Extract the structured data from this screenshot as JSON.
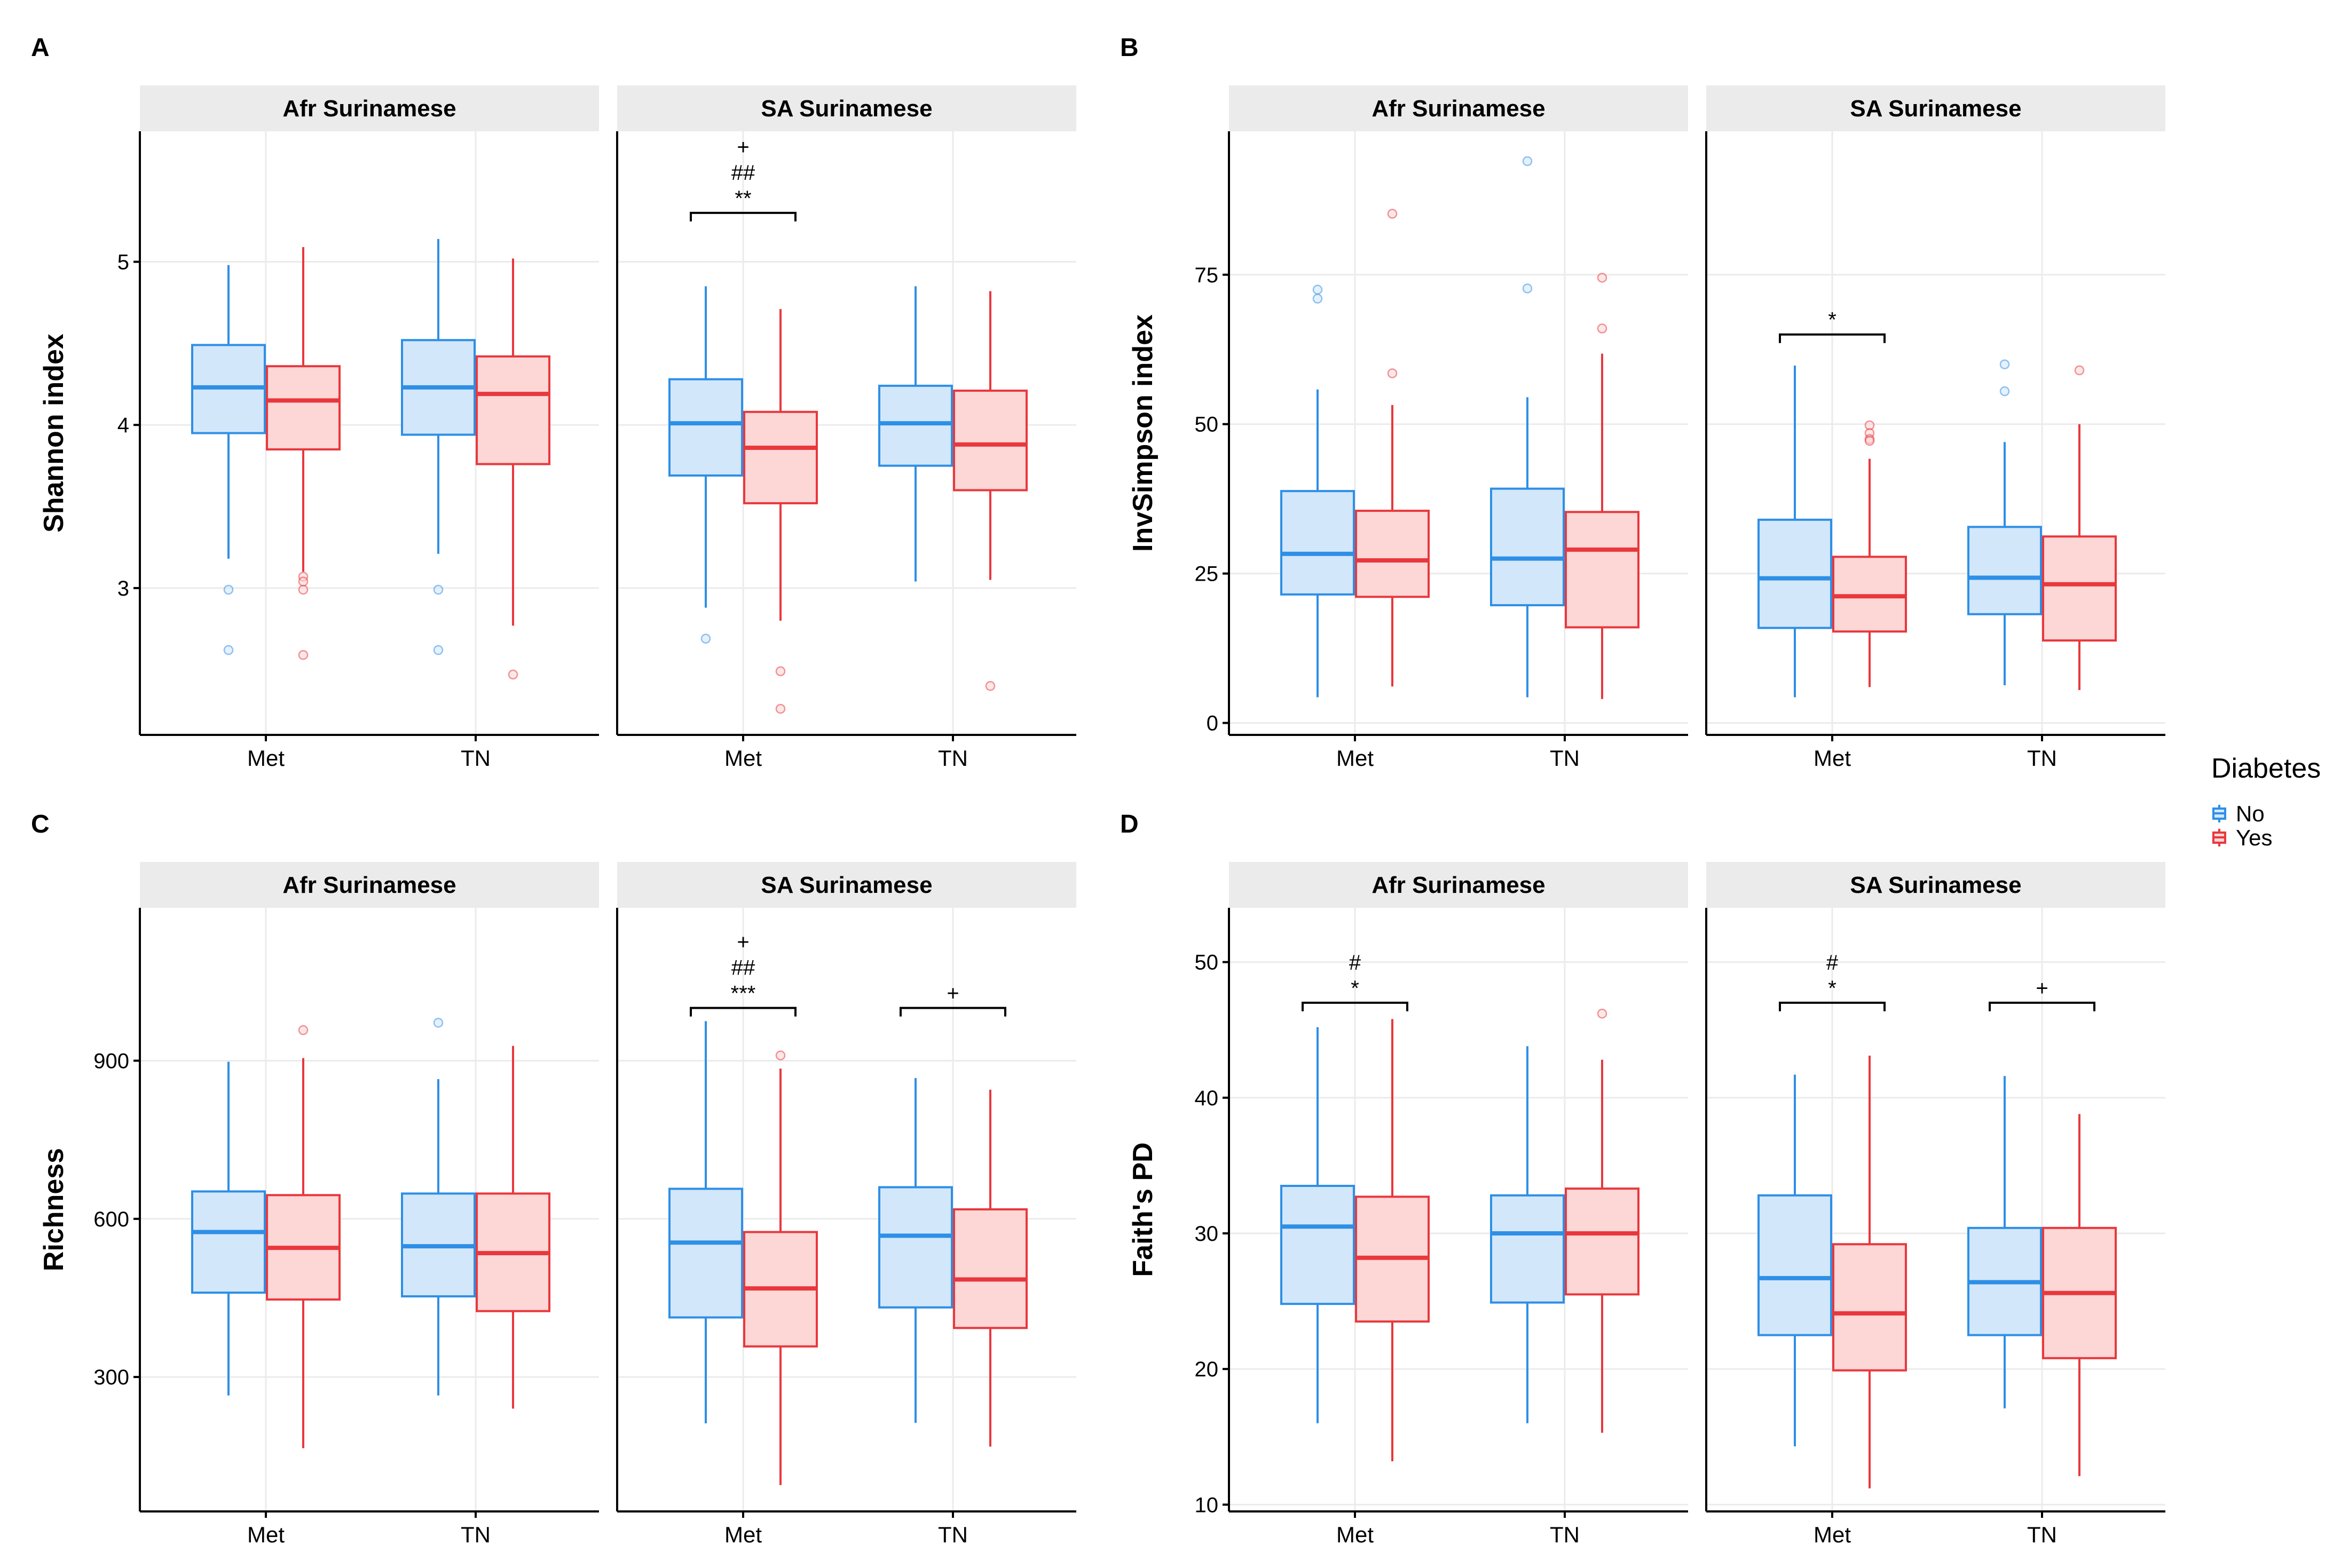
{
  "legend": {
    "title": "Diabetes",
    "items": [
      "No",
      "Yes"
    ]
  },
  "colors": {
    "no_line": "#2E8FE6",
    "no_fill": "#D3E7FA",
    "yes_line": "#E8383D",
    "yes_fill": "#FDD6D6",
    "strip_bg": "#EBEBEB",
    "grid": "#EBEBEB",
    "axis": "#000000",
    "text": "#000000"
  },
  "chart_data": [
    {
      "panel": "A",
      "type": "boxplot",
      "ylabel": "Shannon index",
      "ylim": [
        2.1,
        5.8
      ],
      "yticks": [
        3,
        4,
        5
      ],
      "groups": [
        "Met",
        "TN"
      ],
      "series": [
        "No",
        "Yes"
      ],
      "facets": [
        {
          "title": "Afr Surinamese",
          "groups": [
            {
              "label": "Met",
              "boxes": [
                {
                  "series": "No",
                  "q1": 3.95,
                  "median": 4.23,
                  "q3": 4.49,
                  "whisker_low": 3.18,
                  "whisker_high": 4.98,
                  "outliers": [
                    2.99,
                    2.62
                  ]
                },
                {
                  "series": "Yes",
                  "q1": 3.85,
                  "median": 4.15,
                  "q3": 4.36,
                  "whisker_low": 3.1,
                  "whisker_high": 5.09,
                  "outliers": [
                    3.07,
                    3.04,
                    2.99,
                    2.59
                  ]
                }
              ]
            },
            {
              "label": "TN",
              "boxes": [
                {
                  "series": "No",
                  "q1": 3.94,
                  "median": 4.23,
                  "q3": 4.52,
                  "whisker_low": 3.21,
                  "whisker_high": 5.14,
                  "outliers": [
                    2.99,
                    2.62
                  ]
                },
                {
                  "series": "Yes",
                  "q1": 3.76,
                  "median": 4.19,
                  "q3": 4.42,
                  "whisker_low": 2.77,
                  "whisker_high": 5.02,
                  "outliers": [
                    2.47
                  ]
                }
              ]
            }
          ],
          "annotations": []
        },
        {
          "title": "SA Surinamese",
          "groups": [
            {
              "label": "Met",
              "boxes": [
                {
                  "series": "No",
                  "q1": 3.69,
                  "median": 4.01,
                  "q3": 4.28,
                  "whisker_low": 2.88,
                  "whisker_high": 4.85,
                  "outliers": [
                    2.69
                  ]
                },
                {
                  "series": "Yes",
                  "q1": 3.52,
                  "median": 3.86,
                  "q3": 4.08,
                  "whisker_low": 2.8,
                  "whisker_high": 4.71,
                  "outliers": [
                    2.49,
                    2.26
                  ]
                }
              ]
            },
            {
              "label": "TN",
              "boxes": [
                {
                  "series": "No",
                  "q1": 3.75,
                  "median": 4.01,
                  "q3": 4.24,
                  "whisker_low": 3.04,
                  "whisker_high": 4.85,
                  "outliers": []
                },
                {
                  "series": "Yes",
                  "q1": 3.6,
                  "median": 3.88,
                  "q3": 4.21,
                  "whisker_low": 3.05,
                  "whisker_high": 4.82,
                  "outliers": [
                    2.4
                  ]
                }
              ]
            }
          ],
          "annotations": [
            {
              "group": "Met",
              "bracket": true,
              "y": 5.3,
              "labels": [
                "+",
                "##",
                "**"
              ]
            }
          ]
        }
      ]
    },
    {
      "panel": "B",
      "type": "boxplot",
      "ylabel": "InvSimpson index",
      "ylim": [
        -2,
        99
      ],
      "yticks": [
        0,
        25,
        50,
        75
      ],
      "groups": [
        "Met",
        "TN"
      ],
      "series": [
        "No",
        "Yes"
      ],
      "facets": [
        {
          "title": "Afr Surinamese",
          "groups": [
            {
              "label": "Met",
              "boxes": [
                {
                  "series": "No",
                  "q1": 21.5,
                  "median": 28.3,
                  "q3": 38.8,
                  "whisker_low": 4.3,
                  "whisker_high": 55.8,
                  "outliers": [
                    72.5,
                    71.0
                  ]
                },
                {
                  "series": "Yes",
                  "q1": 21.1,
                  "median": 27.2,
                  "q3": 35.5,
                  "whisker_low": 6.1,
                  "whisker_high": 53.2,
                  "outliers": [
                    85.2,
                    58.5
                  ]
                }
              ]
            },
            {
              "label": "TN",
              "boxes": [
                {
                  "series": "No",
                  "q1": 19.7,
                  "median": 27.5,
                  "q3": 39.2,
                  "whisker_low": 4.3,
                  "whisker_high": 54.5,
                  "outliers": [
                    94.0,
                    72.7
                  ]
                },
                {
                  "series": "Yes",
                  "q1": 16.0,
                  "median": 29.0,
                  "q3": 35.3,
                  "whisker_low": 4.0,
                  "whisker_high": 61.8,
                  "outliers": [
                    74.5,
                    66.0
                  ]
                }
              ]
            }
          ],
          "annotations": []
        },
        {
          "title": "SA Surinamese",
          "groups": [
            {
              "label": "Met",
              "boxes": [
                {
                  "series": "No",
                  "q1": 15.9,
                  "median": 24.2,
                  "q3": 34.0,
                  "whisker_low": 4.3,
                  "whisker_high": 59.8,
                  "outliers": []
                },
                {
                  "series": "Yes",
                  "q1": 15.3,
                  "median": 21.2,
                  "q3": 27.8,
                  "whisker_low": 6.0,
                  "whisker_high": 44.2,
                  "outliers": [
                    49.8,
                    48.5,
                    47.5,
                    47.2
                  ]
                }
              ]
            },
            {
              "label": "TN",
              "boxes": [
                {
                  "series": "No",
                  "q1": 18.2,
                  "median": 24.3,
                  "q3": 32.8,
                  "whisker_low": 6.3,
                  "whisker_high": 47.0,
                  "outliers": [
                    60.0,
                    55.5
                  ]
                },
                {
                  "series": "Yes",
                  "q1": 13.8,
                  "median": 23.2,
                  "q3": 31.2,
                  "whisker_low": 5.5,
                  "whisker_high": 50.0,
                  "outliers": [
                    59.0
                  ]
                }
              ]
            }
          ],
          "annotations": [
            {
              "group": "Met",
              "bracket": true,
              "y": 65.0,
              "labels": [
                "*"
              ]
            }
          ]
        }
      ]
    },
    {
      "panel": "C",
      "type": "boxplot",
      "ylabel": "Richness",
      "ylim": [
        45,
        1190
      ],
      "yticks": [
        300,
        600,
        900
      ],
      "groups": [
        "Met",
        "TN"
      ],
      "series": [
        "No",
        "Yes"
      ],
      "facets": [
        {
          "title": "Afr Surinamese",
          "groups": [
            {
              "label": "Met",
              "boxes": [
                {
                  "series": "No",
                  "q1": 460,
                  "median": 575,
                  "q3": 652,
                  "whisker_low": 265,
                  "whisker_high": 898,
                  "outliers": []
                },
                {
                  "series": "Yes",
                  "q1": 447,
                  "median": 545,
                  "q3": 645,
                  "whisker_low": 165,
                  "whisker_high": 905,
                  "outliers": [
                    958
                  ]
                }
              ]
            },
            {
              "label": "TN",
              "boxes": [
                {
                  "series": "No",
                  "q1": 453,
                  "median": 548,
                  "q3": 648,
                  "whisker_low": 265,
                  "whisker_high": 865,
                  "outliers": [
                    972
                  ]
                },
                {
                  "series": "Yes",
                  "q1": 425,
                  "median": 535,
                  "q3": 648,
                  "whisker_low": 240,
                  "whisker_high": 928,
                  "outliers": []
                }
              ]
            }
          ],
          "annotations": []
        },
        {
          "title": "SA Surinamese",
          "groups": [
            {
              "label": "Met",
              "boxes": [
                {
                  "series": "No",
                  "q1": 413,
                  "median": 555,
                  "q3": 657,
                  "whisker_low": 212,
                  "whisker_high": 975,
                  "outliers": []
                },
                {
                  "series": "Yes",
                  "q1": 358,
                  "median": 468,
                  "q3": 575,
                  "whisker_low": 95,
                  "whisker_high": 885,
                  "outliers": [
                    910
                  ]
                }
              ]
            },
            {
              "label": "TN",
              "boxes": [
                {
                  "series": "No",
                  "q1": 432,
                  "median": 568,
                  "q3": 660,
                  "whisker_low": 213,
                  "whisker_high": 867,
                  "outliers": []
                },
                {
                  "series": "Yes",
                  "q1": 393,
                  "median": 485,
                  "q3": 618,
                  "whisker_low": 168,
                  "whisker_high": 845,
                  "outliers": []
                }
              ]
            }
          ],
          "annotations": [
            {
              "group": "Met",
              "bracket": true,
              "y": 1000,
              "labels": [
                "+",
                "##",
                "***"
              ]
            },
            {
              "group": "TN",
              "bracket": true,
              "y": 1000,
              "labels": [
                "+"
              ]
            }
          ]
        }
      ]
    },
    {
      "panel": "D",
      "type": "boxplot",
      "ylabel": "Faith's PD",
      "ylim": [
        9.5,
        54
      ],
      "yticks": [
        10,
        20,
        30,
        40,
        50
      ],
      "groups": [
        "Met",
        "TN"
      ],
      "series": [
        "No",
        "Yes"
      ],
      "facets": [
        {
          "title": "Afr Surinamese",
          "groups": [
            {
              "label": "Met",
              "boxes": [
                {
                  "series": "No",
                  "q1": 24.8,
                  "median": 30.5,
                  "q3": 33.5,
                  "whisker_low": 16.0,
                  "whisker_high": 45.2,
                  "outliers": []
                },
                {
                  "series": "Yes",
                  "q1": 23.5,
                  "median": 28.2,
                  "q3": 32.7,
                  "whisker_low": 13.2,
                  "whisker_high": 45.8,
                  "outliers": []
                }
              ]
            },
            {
              "label": "TN",
              "boxes": [
                {
                  "series": "No",
                  "q1": 24.9,
                  "median": 30.0,
                  "q3": 32.8,
                  "whisker_low": 16.0,
                  "whisker_high": 43.8,
                  "outliers": []
                },
                {
                  "series": "Yes",
                  "q1": 25.5,
                  "median": 30.0,
                  "q3": 33.3,
                  "whisker_low": 15.3,
                  "whisker_high": 42.8,
                  "outliers": [
                    46.2
                  ]
                }
              ]
            }
          ],
          "annotations": [
            {
              "group": "Met",
              "bracket": true,
              "y": 47.0,
              "labels": [
                "#",
                "*"
              ]
            }
          ]
        },
        {
          "title": "SA Surinamese",
          "groups": [
            {
              "label": "Met",
              "boxes": [
                {
                  "series": "No",
                  "q1": 22.5,
                  "median": 26.7,
                  "q3": 32.8,
                  "whisker_low": 14.3,
                  "whisker_high": 41.7,
                  "outliers": []
                },
                {
                  "series": "Yes",
                  "q1": 19.9,
                  "median": 24.1,
                  "q3": 29.2,
                  "whisker_low": 11.2,
                  "whisker_high": 43.1,
                  "outliers": []
                }
              ]
            },
            {
              "label": "TN",
              "boxes": [
                {
                  "series": "No",
                  "q1": 22.5,
                  "median": 26.4,
                  "q3": 30.4,
                  "whisker_low": 17.1,
                  "whisker_high": 41.6,
                  "outliers": []
                },
                {
                  "series": "Yes",
                  "q1": 20.8,
                  "median": 25.6,
                  "q3": 30.4,
                  "whisker_low": 12.1,
                  "whisker_high": 38.8,
                  "outliers": []
                }
              ]
            }
          ],
          "annotations": [
            {
              "group": "Met",
              "bracket": true,
              "y": 47.0,
              "labels": [
                "#",
                "*"
              ]
            },
            {
              "group": "TN",
              "bracket": true,
              "y": 47.0,
              "labels": [
                "+"
              ]
            }
          ]
        }
      ]
    }
  ]
}
